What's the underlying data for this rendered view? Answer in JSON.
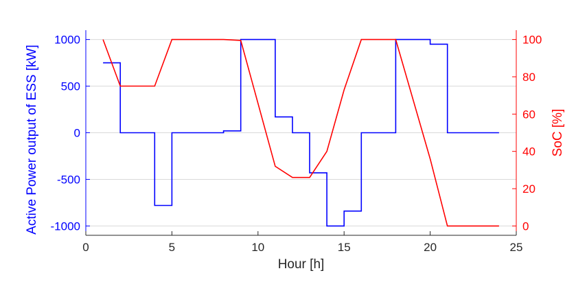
{
  "chart_data": {
    "type": "line",
    "title": "",
    "xlabel": "Hour [h]",
    "ylabel_left": "Active Power output of ESS [kW]",
    "ylabel_right": "SoC [%]",
    "xlim": [
      0,
      25
    ],
    "ylim_left": [
      -1100,
      1100
    ],
    "ylim_right": [
      -5,
      105
    ],
    "xticks": [
      0,
      5,
      10,
      15,
      20,
      25
    ],
    "yticks_left": [
      -1000,
      -500,
      0,
      500,
      1000
    ],
    "yticks_right": [
      0,
      20,
      40,
      60,
      80,
      100
    ],
    "grid": "horizontal",
    "colors": {
      "power": "#0000ff",
      "soc": "#ff0000",
      "grid": "#d9d9d9",
      "axis": "#262626"
    },
    "series": [
      {
        "axis": "left",
        "style": "step",
        "x": [
          1,
          2,
          2,
          4,
          4,
          5,
          5,
          8,
          8,
          9,
          9,
          11,
          11,
          12,
          12,
          13,
          13,
          14,
          14,
          15,
          15,
          16,
          16,
          18,
          18,
          20,
          20,
          21,
          21,
          24
        ],
        "y": [
          750,
          750,
          0,
          0,
          -780,
          -780,
          0,
          0,
          20,
          20,
          1000,
          1000,
          170,
          170,
          0,
          0,
          -430,
          -430,
          -1000,
          -1000,
          -840,
          -840,
          0,
          0,
          1000,
          1000,
          950,
          950,
          0,
          0
        ]
      },
      {
        "axis": "right",
        "style": "line",
        "x": [
          1,
          2,
          4,
          5,
          8,
          9,
          11,
          12,
          13,
          14,
          15,
          16,
          18,
          20,
          21,
          24
        ],
        "y": [
          100,
          75,
          75,
          100,
          100,
          99.5,
          32,
          26,
          26,
          40,
          73,
          100,
          100,
          36,
          0,
          0
        ]
      }
    ]
  }
}
